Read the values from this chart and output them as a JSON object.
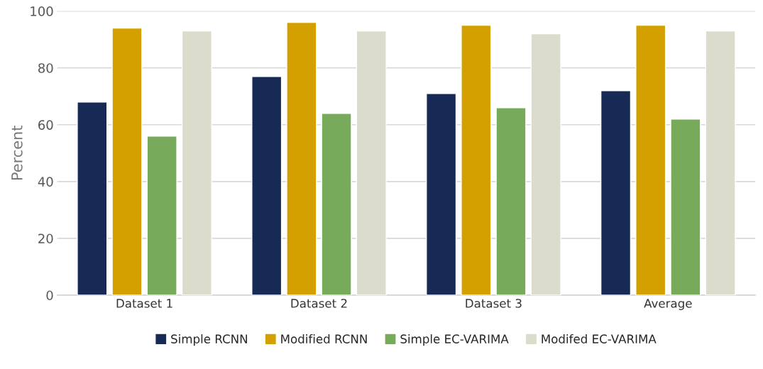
{
  "chart_data": {
    "type": "bar",
    "ylabel": "Percent",
    "categories": [
      "Dataset 1",
      "Dataset 2",
      "Dataset 3",
      "Average"
    ],
    "series": [
      {
        "name": "Simple RCNN",
        "color": "#172a55",
        "values": [
          68,
          77,
          71,
          72
        ]
      },
      {
        "name": "Modified RCNN",
        "color": "#d4a000",
        "values": [
          94,
          96,
          95,
          95
        ]
      },
      {
        "name": "Simple EC-VARIMA",
        "color": "#77ab5b",
        "values": [
          56,
          64,
          66,
          62
        ]
      },
      {
        "name": "Modifed EC-VARIMA",
        "color": "#dcdccc",
        "values": [
          93,
          93,
          92,
          93
        ]
      }
    ],
    "ylim": [
      0,
      100
    ],
    "yticks": [
      0,
      20,
      40,
      60,
      80,
      100
    ],
    "grid": "y",
    "legend": "bottom"
  }
}
